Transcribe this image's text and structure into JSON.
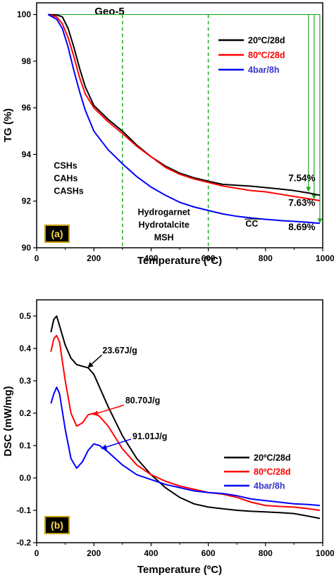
{
  "chart_data": [
    {
      "type": "line",
      "panel_label": "(a)",
      "title": "Geo-5",
      "xlabel": "Temperature (ºC)",
      "ylabel": "TG (%)",
      "xlim": [
        0,
        1000
      ],
      "ylim": [
        90,
        100.5
      ],
      "xticks": [
        0,
        200,
        400,
        600,
        800,
        1000
      ],
      "xtick_labels": [
        "0",
        "200",
        "400",
        "600",
        "800",
        "1000"
      ],
      "yticks": [
        90,
        92,
        94,
        96,
        98,
        100
      ],
      "ytick_labels": [
        "90",
        "92",
        "94",
        "96",
        "98",
        "100"
      ],
      "legend_position": "top-right",
      "series": [
        {
          "name": "20ºC/28d",
          "color": "#000000",
          "x": [
            40,
            70,
            90,
            110,
            130,
            150,
            170,
            200,
            250,
            300,
            350,
            400,
            450,
            500,
            550,
            600,
            650,
            700,
            750,
            800,
            850,
            900,
            950,
            990
          ],
          "y": [
            100,
            99.98,
            99.9,
            99.4,
            98.6,
            97.7,
            96.9,
            96.1,
            95.5,
            95.0,
            94.4,
            93.9,
            93.5,
            93.2,
            93.0,
            92.85,
            92.72,
            92.68,
            92.64,
            92.58,
            92.52,
            92.45,
            92.35,
            92.25
          ]
        },
        {
          "name": "80ºC/28d",
          "color": "#ff0000",
          "x": [
            40,
            70,
            90,
            110,
            130,
            150,
            170,
            200,
            250,
            300,
            350,
            400,
            450,
            500,
            550,
            600,
            650,
            700,
            750,
            800,
            850,
            900,
            950,
            990
          ],
          "y": [
            100,
            99.9,
            99.6,
            99.0,
            98.2,
            97.3,
            96.6,
            96.0,
            95.4,
            94.9,
            94.35,
            93.9,
            93.45,
            93.15,
            92.95,
            92.8,
            92.65,
            92.55,
            92.45,
            92.4,
            92.3,
            92.2,
            92.1,
            92.02
          ]
        },
        {
          "name": "4bar/8h",
          "color": "#0000ff",
          "x": [
            40,
            70,
            90,
            110,
            130,
            150,
            170,
            200,
            250,
            300,
            350,
            400,
            450,
            500,
            550,
            600,
            650,
            700,
            750,
            800,
            850,
            900,
            950,
            990
          ],
          "y": [
            100,
            99.8,
            99.4,
            98.6,
            97.6,
            96.7,
            95.9,
            95.0,
            94.2,
            93.6,
            93.05,
            92.6,
            92.25,
            91.95,
            91.75,
            91.6,
            91.45,
            91.35,
            91.28,
            91.22,
            91.17,
            91.13,
            91.09,
            91.05
          ]
        }
      ],
      "vlines": [
        300,
        600
      ],
      "annotations": [
        {
          "lines": [
            "CSHs",
            "CAHs",
            "CASHs"
          ],
          "x": 60,
          "y": 93.4
        },
        {
          "lines": [
            "Hydrogarnet",
            "Hydrotalcite",
            "MSH"
          ],
          "x": 445,
          "y": 91.4
        },
        {
          "lines": [
            "CC"
          ],
          "x": 730,
          "y": 90.9,
          "overline": true
        },
        {
          "lines": [
            "7.54%"
          ],
          "x": 880,
          "y": 92.85,
          "color": "#000000"
        },
        {
          "lines": [
            "7.63%"
          ],
          "x": 880,
          "y": 91.8,
          "color": "#ff0000"
        },
        {
          "lines": [
            "8.69%"
          ],
          "x": 880,
          "y": 90.75,
          "color": "#3333cc"
        }
      ]
    },
    {
      "type": "line",
      "panel_label": "(b)",
      "xlabel": "Temperature (ºC)",
      "ylabel": "DSC (mW/mg)",
      "xlim": [
        0,
        1000
      ],
      "ylim": [
        -0.2,
        0.55
      ],
      "xticks": [
        0,
        200,
        400,
        600,
        800,
        1000
      ],
      "xtick_labels": [
        "0",
        "200",
        "400",
        "600",
        "800",
        "1000"
      ],
      "yticks": [
        -0.2,
        -0.1,
        0.0,
        0.1,
        0.2,
        0.3,
        0.4,
        0.5
      ],
      "ytick_labels": [
        "-0.2",
        "-0.1",
        "0.0",
        "0.1",
        "0.2",
        "0.3",
        "0.4",
        "0.5"
      ],
      "legend_position": "bottom-right",
      "series": [
        {
          "name": "20ºC/28d",
          "color": "#000000",
          "x": [
            50,
            60,
            70,
            80,
            100,
            120,
            140,
            160,
            180,
            200,
            220,
            250,
            300,
            350,
            400,
            450,
            500,
            550,
            600,
            650,
            700,
            750,
            800,
            850,
            900,
            950,
            990
          ],
          "y": [
            0.45,
            0.49,
            0.5,
            0.47,
            0.41,
            0.37,
            0.35,
            0.345,
            0.34,
            0.32,
            0.28,
            0.22,
            0.13,
            0.06,
            0.01,
            -0.03,
            -0.06,
            -0.08,
            -0.09,
            -0.095,
            -0.1,
            -0.103,
            -0.105,
            -0.107,
            -0.11,
            -0.118,
            -0.125
          ]
        },
        {
          "name": "80ºC/28d",
          "color": "#ff0000",
          "x": [
            50,
            60,
            70,
            80,
            100,
            120,
            140,
            160,
            180,
            200,
            220,
            250,
            300,
            350,
            400,
            450,
            500,
            550,
            600,
            650,
            700,
            750,
            800,
            850,
            900,
            950,
            990
          ],
          "y": [
            0.39,
            0.43,
            0.44,
            0.42,
            0.3,
            0.2,
            0.16,
            0.17,
            0.195,
            0.2,
            0.19,
            0.16,
            0.09,
            0.04,
            0.01,
            -0.01,
            -0.025,
            -0.035,
            -0.045,
            -0.05,
            -0.06,
            -0.075,
            -0.085,
            -0.088,
            -0.09,
            -0.095,
            -0.1
          ]
        },
        {
          "name": "4bar/8h",
          "color": "#0000ff",
          "x": [
            50,
            60,
            70,
            80,
            100,
            120,
            140,
            160,
            180,
            200,
            220,
            250,
            300,
            350,
            400,
            450,
            500,
            550,
            600,
            650,
            700,
            750,
            800,
            850,
            900,
            950,
            990
          ],
          "y": [
            0.23,
            0.26,
            0.28,
            0.26,
            0.15,
            0.06,
            0.03,
            0.05,
            0.085,
            0.105,
            0.1,
            0.08,
            0.04,
            0.01,
            -0.005,
            -0.02,
            -0.03,
            -0.04,
            -0.045,
            -0.048,
            -0.055,
            -0.065,
            -0.07,
            -0.075,
            -0.08,
            -0.082,
            -0.085
          ]
        }
      ],
      "annotations": [
        {
          "lines": [
            "23.67J/g"
          ],
          "x": 230,
          "y": 0.385,
          "color": "#000000"
        },
        {
          "lines": [
            "80.70J/g"
          ],
          "x": 310,
          "y": 0.23,
          "color": "#ff0000"
        },
        {
          "lines": [
            "91.01J/g"
          ],
          "x": 335,
          "y": 0.12,
          "color": "#3333cc"
        }
      ]
    }
  ]
}
